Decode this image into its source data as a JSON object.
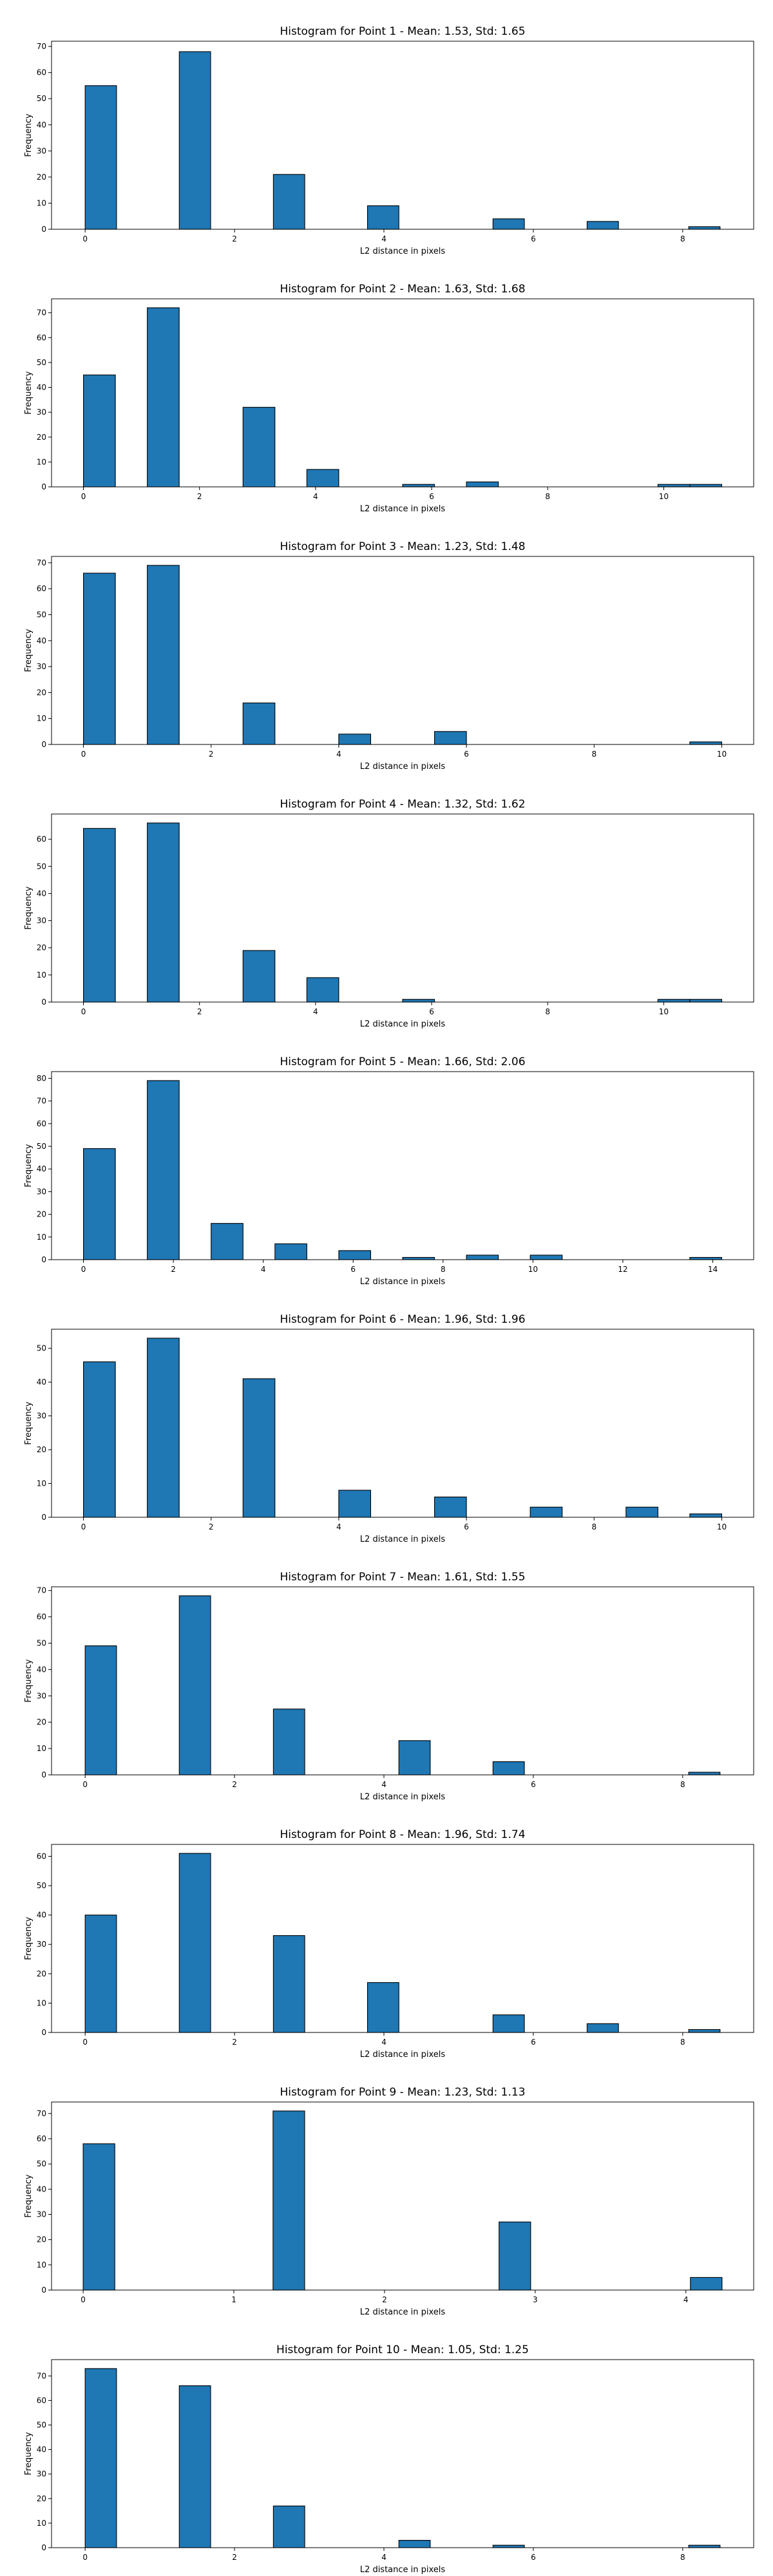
{
  "chart_data": [
    {
      "type": "bar",
      "title": "Histogram for Point 1 - Mean: 1.53, Std: 1.65",
      "xlabel": "L2 distance in pixels",
      "ylabel": "Frequency",
      "xlim": [
        -0.45,
        8.95
      ],
      "ylim": [
        0,
        72
      ],
      "xticks": [
        0,
        2,
        4,
        6,
        8
      ],
      "yticks": [
        0,
        10,
        20,
        30,
        40,
        50,
        60,
        70
      ],
      "bins": [
        {
          "x0": 0.0,
          "x1": 0.42,
          "count": 55
        },
        {
          "x0": 1.26,
          "x1": 1.68,
          "count": 68
        },
        {
          "x0": 2.52,
          "x1": 2.94,
          "count": 21
        },
        {
          "x0": 3.78,
          "x1": 4.2,
          "count": 9
        },
        {
          "x0": 5.46,
          "x1": 5.88,
          "count": 4
        },
        {
          "x0": 6.72,
          "x1": 7.14,
          "count": 3
        },
        {
          "x0": 8.08,
          "x1": 8.5,
          "count": 1
        }
      ]
    },
    {
      "type": "bar",
      "title": "Histogram for Point 2 - Mean: 1.63, Std: 1.68",
      "xlabel": "L2 distance in pixels",
      "ylabel": "Frequency",
      "xlim": [
        -0.55,
        11.55
      ],
      "ylim": [
        0,
        75.6
      ],
      "xticks": [
        0,
        2,
        4,
        6,
        8,
        10
      ],
      "yticks": [
        0,
        10,
        20,
        30,
        40,
        50,
        60,
        70
      ],
      "bins": [
        {
          "x0": 0.0,
          "x1": 0.55,
          "count": 45
        },
        {
          "x0": 1.1,
          "x1": 1.65,
          "count": 72
        },
        {
          "x0": 2.75,
          "x1": 3.3,
          "count": 32
        },
        {
          "x0": 3.85,
          "x1": 4.4,
          "count": 7
        },
        {
          "x0": 5.5,
          "x1": 6.05,
          "count": 1
        },
        {
          "x0": 6.6,
          "x1": 7.15,
          "count": 2
        },
        {
          "x0": 9.9,
          "x1": 10.45,
          "count": 1
        },
        {
          "x0": 10.45,
          "x1": 11.0,
          "count": 1
        }
      ]
    },
    {
      "type": "bar",
      "title": "Histogram for Point 3 - Mean: 1.23, Std: 1.48",
      "xlabel": "L2 distance in pixels",
      "ylabel": "Frequency",
      "xlim": [
        -0.5,
        10.5
      ],
      "ylim": [
        0,
        72.45
      ],
      "xticks": [
        0,
        2,
        4,
        6,
        8,
        10
      ],
      "yticks": [
        0,
        10,
        20,
        30,
        40,
        50,
        60,
        70
      ],
      "bins": [
        {
          "x0": 0.0,
          "x1": 0.5,
          "count": 66
        },
        {
          "x0": 1.0,
          "x1": 1.5,
          "count": 69
        },
        {
          "x0": 2.5,
          "x1": 3.0,
          "count": 16
        },
        {
          "x0": 4.0,
          "x1": 4.5,
          "count": 4
        },
        {
          "x0": 5.5,
          "x1": 6.0,
          "count": 5
        },
        {
          "x0": 9.5,
          "x1": 10.0,
          "count": 1
        }
      ]
    },
    {
      "type": "bar",
      "title": "Histogram for Point 4 - Mean: 1.32, Std: 1.62",
      "xlabel": "L2 distance in pixels",
      "ylabel": "Frequency",
      "xlim": [
        -0.55,
        11.55
      ],
      "ylim": [
        0,
        69.3
      ],
      "xticks": [
        0,
        2,
        4,
        6,
        8,
        10
      ],
      "yticks": [
        0,
        10,
        20,
        30,
        40,
        50,
        60
      ],
      "bins": [
        {
          "x0": 0.0,
          "x1": 0.55,
          "count": 64
        },
        {
          "x0": 1.1,
          "x1": 1.65,
          "count": 66
        },
        {
          "x0": 2.75,
          "x1": 3.3,
          "count": 19
        },
        {
          "x0": 3.85,
          "x1": 4.4,
          "count": 9
        },
        {
          "x0": 5.5,
          "x1": 6.05,
          "count": 1
        },
        {
          "x0": 9.9,
          "x1": 10.45,
          "count": 1
        },
        {
          "x0": 10.45,
          "x1": 11.0,
          "count": 1
        }
      ]
    },
    {
      "type": "bar",
      "title": "Histogram for Point 5 - Mean: 1.66, Std: 2.06",
      "xlabel": "L2 distance in pixels",
      "ylabel": "Frequency",
      "xlim": [
        -0.71,
        14.91
      ],
      "ylim": [
        0,
        82.95
      ],
      "xticks": [
        0,
        2,
        4,
        6,
        8,
        10,
        12,
        14
      ],
      "yticks": [
        0,
        10,
        20,
        30,
        40,
        50,
        60,
        70,
        80
      ],
      "bins": [
        {
          "x0": 0.0,
          "x1": 0.71,
          "count": 49
        },
        {
          "x0": 1.42,
          "x1": 2.13,
          "count": 79
        },
        {
          "x0": 2.84,
          "x1": 3.55,
          "count": 16
        },
        {
          "x0": 4.26,
          "x1": 4.97,
          "count": 7
        },
        {
          "x0": 5.68,
          "x1": 6.39,
          "count": 4
        },
        {
          "x0": 7.1,
          "x1": 7.81,
          "count": 1
        },
        {
          "x0": 8.52,
          "x1": 9.23,
          "count": 2
        },
        {
          "x0": 9.94,
          "x1": 10.65,
          "count": 2
        },
        {
          "x0": 13.49,
          "x1": 14.2,
          "count": 1
        }
      ]
    },
    {
      "type": "bar",
      "title": "Histogram for Point 6 - Mean: 1.96, Std: 1.96",
      "xlabel": "L2 distance in pixels",
      "ylabel": "Frequency",
      "xlim": [
        -0.5,
        10.5
      ],
      "ylim": [
        0,
        55.65
      ],
      "xticks": [
        0,
        2,
        4,
        6,
        8,
        10
      ],
      "yticks": [
        0,
        10,
        20,
        30,
        40,
        50
      ],
      "bins": [
        {
          "x0": 0.0,
          "x1": 0.5,
          "count": 46
        },
        {
          "x0": 1.0,
          "x1": 1.5,
          "count": 53
        },
        {
          "x0": 2.5,
          "x1": 3.0,
          "count": 41
        },
        {
          "x0": 4.0,
          "x1": 4.5,
          "count": 8
        },
        {
          "x0": 5.5,
          "x1": 6.0,
          "count": 6
        },
        {
          "x0": 7.0,
          "x1": 7.5,
          "count": 3
        },
        {
          "x0": 8.5,
          "x1": 9.0,
          "count": 3
        },
        {
          "x0": 9.5,
          "x1": 10.0,
          "count": 1
        }
      ]
    },
    {
      "type": "bar",
      "title": "Histogram for Point 7 - Mean: 1.61, Std: 1.55",
      "xlabel": "L2 distance in pixels",
      "ylabel": "Frequency",
      "xlim": [
        -0.45,
        8.95
      ],
      "ylim": [
        0,
        71.4
      ],
      "xticks": [
        0,
        2,
        4,
        6,
        8
      ],
      "yticks": [
        0,
        10,
        20,
        30,
        40,
        50,
        60,
        70
      ],
      "bins": [
        {
          "x0": 0.0,
          "x1": 0.42,
          "count": 49
        },
        {
          "x0": 1.26,
          "x1": 1.68,
          "count": 68
        },
        {
          "x0": 2.52,
          "x1": 2.94,
          "count": 25
        },
        {
          "x0": 4.2,
          "x1": 4.62,
          "count": 13
        },
        {
          "x0": 5.46,
          "x1": 5.88,
          "count": 5
        },
        {
          "x0": 8.08,
          "x1": 8.5,
          "count": 1
        }
      ]
    },
    {
      "type": "bar",
      "title": "Histogram for Point 8 - Mean: 1.96, Std: 1.74",
      "xlabel": "L2 distance in pixels",
      "ylabel": "Frequency",
      "xlim": [
        -0.45,
        8.95
      ],
      "ylim": [
        0,
        64.05
      ],
      "xticks": [
        0,
        2,
        4,
        6,
        8
      ],
      "yticks": [
        0,
        10,
        20,
        30,
        40,
        50,
        60
      ],
      "bins": [
        {
          "x0": 0.0,
          "x1": 0.42,
          "count": 40
        },
        {
          "x0": 1.26,
          "x1": 1.68,
          "count": 61
        },
        {
          "x0": 2.52,
          "x1": 2.94,
          "count": 33
        },
        {
          "x0": 3.78,
          "x1": 4.2,
          "count": 17
        },
        {
          "x0": 5.46,
          "x1": 5.88,
          "count": 6
        },
        {
          "x0": 6.72,
          "x1": 7.14,
          "count": 3
        },
        {
          "x0": 8.08,
          "x1": 8.5,
          "count": 1
        }
      ]
    },
    {
      "type": "bar",
      "title": "Histogram for Point 9 - Mean: 1.23, Std: 1.13",
      "xlabel": "L2 distance in pixels",
      "ylabel": "Frequency",
      "xlim": [
        -0.21,
        4.45
      ],
      "ylim": [
        0,
        74.55
      ],
      "xticks": [
        0,
        1,
        2,
        3,
        4
      ],
      "yticks": [
        0,
        10,
        20,
        30,
        40,
        50,
        60,
        70
      ],
      "bins": [
        {
          "x0": 0.0,
          "x1": 0.21,
          "count": 58
        },
        {
          "x0": 1.26,
          "x1": 1.47,
          "count": 71
        },
        {
          "x0": 2.76,
          "x1": 2.97,
          "count": 27
        },
        {
          "x0": 4.03,
          "x1": 4.24,
          "count": 5
        }
      ]
    },
    {
      "type": "bar",
      "title": "Histogram for Point 10 - Mean: 1.05, Std: 1.25",
      "xlabel": "L2 distance in pixels",
      "ylabel": "Frequency",
      "xlim": [
        -0.45,
        8.95
      ],
      "ylim": [
        0,
        76.65
      ],
      "xticks": [
        0,
        2,
        4,
        6,
        8
      ],
      "yticks": [
        0,
        10,
        20,
        30,
        40,
        50,
        60,
        70
      ],
      "bins": [
        {
          "x0": 0.0,
          "x1": 0.42,
          "count": 73
        },
        {
          "x0": 1.26,
          "x1": 1.68,
          "count": 66
        },
        {
          "x0": 2.52,
          "x1": 2.94,
          "count": 17
        },
        {
          "x0": 4.2,
          "x1": 4.62,
          "count": 3
        },
        {
          "x0": 5.46,
          "x1": 5.88,
          "count": 1
        },
        {
          "x0": 8.08,
          "x1": 8.5,
          "count": 1
        }
      ]
    }
  ],
  "style": {
    "bar_fill": "#1f77b4",
    "bar_edge": "#000000",
    "axis_color": "#000000",
    "background": "#ffffff"
  }
}
